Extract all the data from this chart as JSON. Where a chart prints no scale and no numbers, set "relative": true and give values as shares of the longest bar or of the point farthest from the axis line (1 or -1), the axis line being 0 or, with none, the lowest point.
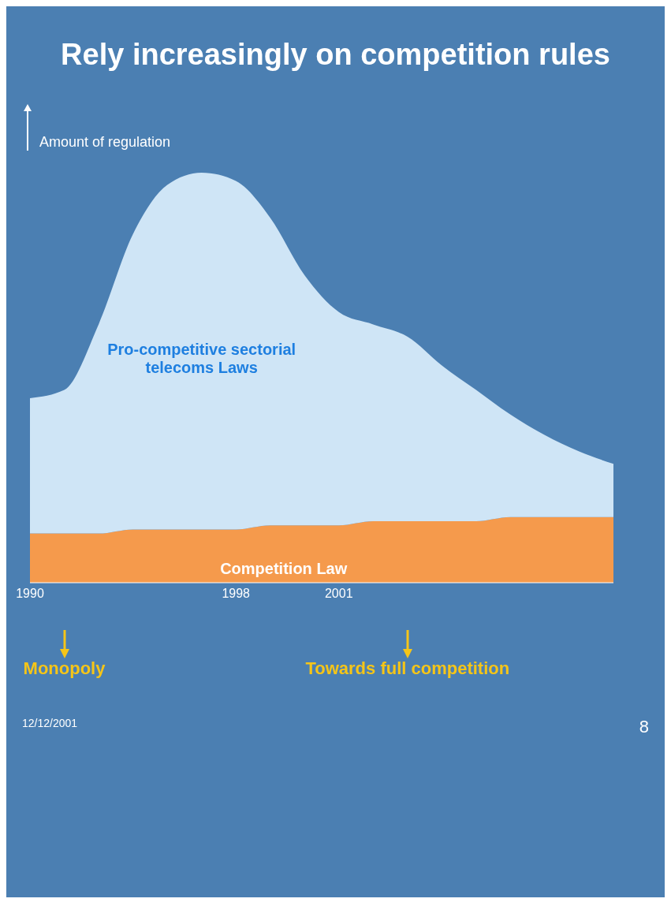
{
  "chart_data": {
    "type": "area",
    "title": "Rely increasingly on competition rules",
    "ylabel": "Amount of regulation",
    "relative": true,
    "stacked": true,
    "categories": [
      "1990",
      null,
      null,
      null,
      null,
      null,
      "1998",
      null,
      null,
      "2001",
      null,
      null,
      null,
      null,
      null,
      null,
      null,
      null
    ],
    "series": [
      {
        "name": "Competition Law",
        "color": "#f59a4c",
        "values": [
          0.12,
          0.12,
          0.12,
          0.13,
          0.13,
          0.13,
          0.13,
          0.14,
          0.14,
          0.14,
          0.15,
          0.15,
          0.15,
          0.15,
          0.16,
          0.16,
          0.16,
          0.16
        ]
      },
      {
        "name": "Pro-competitive sectorial telecoms Laws",
        "color": "#cfe5f6",
        "values": [
          0.33,
          0.35,
          0.51,
          0.72,
          0.84,
          0.87,
          0.85,
          0.75,
          0.61,
          0.52,
          0.48,
          0.45,
          0.38,
          0.32,
          0.25,
          0.2,
          0.16,
          0.13
        ]
      }
    ],
    "annotations": [
      "Monopoly",
      "Towards full competition",
      "12/12/2001",
      "8"
    ]
  }
}
